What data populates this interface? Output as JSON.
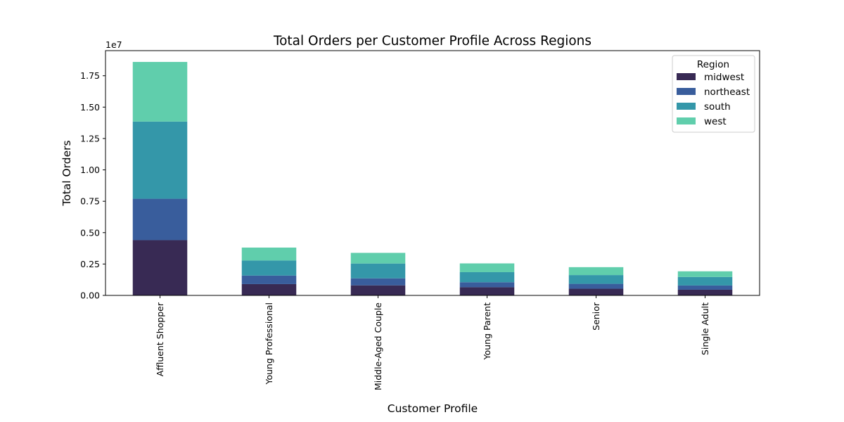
{
  "chart_data": {
    "type": "bar",
    "stacked": true,
    "title": "Total Orders per Customer Profile Across Regions",
    "xlabel": "Customer Profile",
    "ylabel": "Total Orders",
    "offset_text": "1e7",
    "ylim": [
      0,
      19500000
    ],
    "yticks": [
      0,
      2500000,
      5000000,
      7500000,
      10000000,
      12500000,
      15000000,
      17500000
    ],
    "ytick_labels": [
      "0.00",
      "0.25",
      "0.50",
      "0.75",
      "1.00",
      "1.25",
      "1.50",
      "1.75"
    ],
    "categories": [
      "Affluent Shopper",
      "Young Professional",
      "Middle-Aged Couple",
      "Young Parent",
      "Senior",
      "Single Adult"
    ],
    "series": [
      {
        "name": "midwest",
        "color": "#382a54",
        "values": [
          4400000,
          900000,
          800000,
          650000,
          530000,
          450000
        ]
      },
      {
        "name": "northeast",
        "color": "#395d9c",
        "values": [
          3300000,
          680000,
          560000,
          400000,
          390000,
          340000
        ]
      },
      {
        "name": "south",
        "color": "#3497a9",
        "values": [
          6150000,
          1200000,
          1180000,
          800000,
          700000,
          680000
        ]
      },
      {
        "name": "west",
        "color": "#60ceac",
        "values": [
          4750000,
          1030000,
          850000,
          700000,
          630000,
          450000
        ]
      }
    ],
    "legend": {
      "title": "Region",
      "position": "upper right"
    },
    "grid": false
  }
}
